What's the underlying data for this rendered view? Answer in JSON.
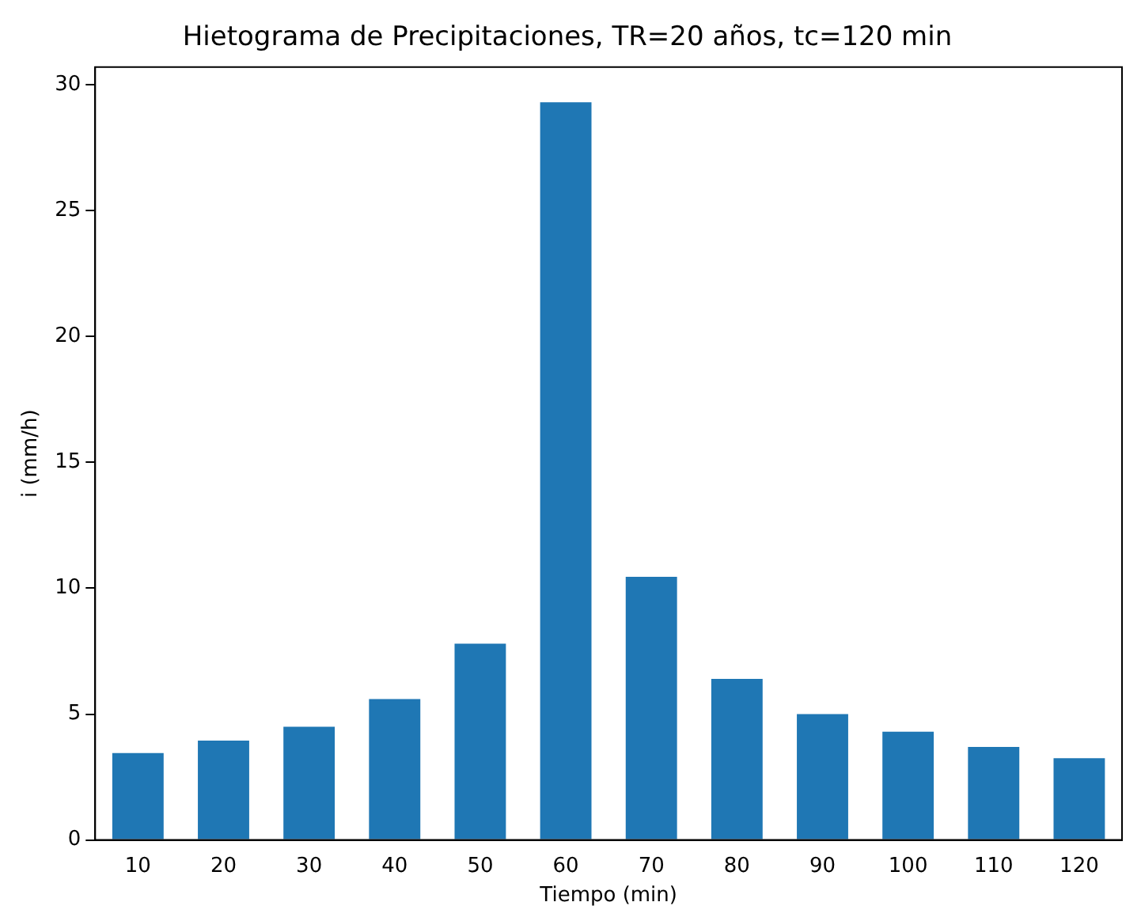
{
  "chart_data": {
    "type": "bar",
    "title": "Hietograma de Precipitaciones, TR=20 años, tc=120 min",
    "xlabel": "Tiempo (min)",
    "ylabel": "i (mm/h)",
    "categories": [
      "10",
      "20",
      "30",
      "40",
      "50",
      "60",
      "70",
      "80",
      "90",
      "100",
      "110",
      "120"
    ],
    "values": [
      3.45,
      3.95,
      4.5,
      5.6,
      7.8,
      29.3,
      10.45,
      6.4,
      5.0,
      4.3,
      3.7,
      3.25
    ],
    "color": "#1f77b4",
    "ylim": [
      0,
      30.7
    ],
    "yticks": [
      0,
      5,
      10,
      15,
      20,
      25,
      30
    ],
    "grid": false,
    "legend": false
  }
}
